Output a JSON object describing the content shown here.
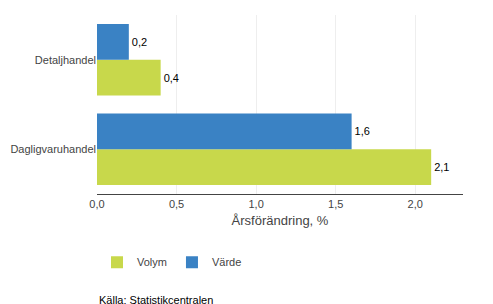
{
  "chart_data": {
    "type": "bar",
    "orientation": "horizontal",
    "categories": [
      "Dagligvaruhandel",
      "Detaljhandel"
    ],
    "series": [
      {
        "name": "Volym",
        "color": "#c8d84b",
        "values": [
          2.1,
          0.4
        ],
        "value_labels": [
          "2,1",
          "0,4"
        ]
      },
      {
        "name": "Värde",
        "color": "#3a82c4",
        "values": [
          1.6,
          0.2
        ],
        "value_labels": [
          "1,6",
          "0,2"
        ]
      }
    ],
    "xlabel": "Årsförändring, %",
    "xlim": [
      0,
      2.3
    ],
    "xticks": [
      {
        "value": 0.0,
        "label": "0,0"
      },
      {
        "value": 0.5,
        "label": "0,5"
      },
      {
        "value": 1.0,
        "label": "1,0"
      },
      {
        "value": 1.5,
        "label": "1,5"
      },
      {
        "value": 2.0,
        "label": "2,0"
      }
    ],
    "grid": true,
    "data_labels": true,
    "legend": "bottom",
    "annotations": [
      "Källa: Statistikcentralen"
    ]
  }
}
